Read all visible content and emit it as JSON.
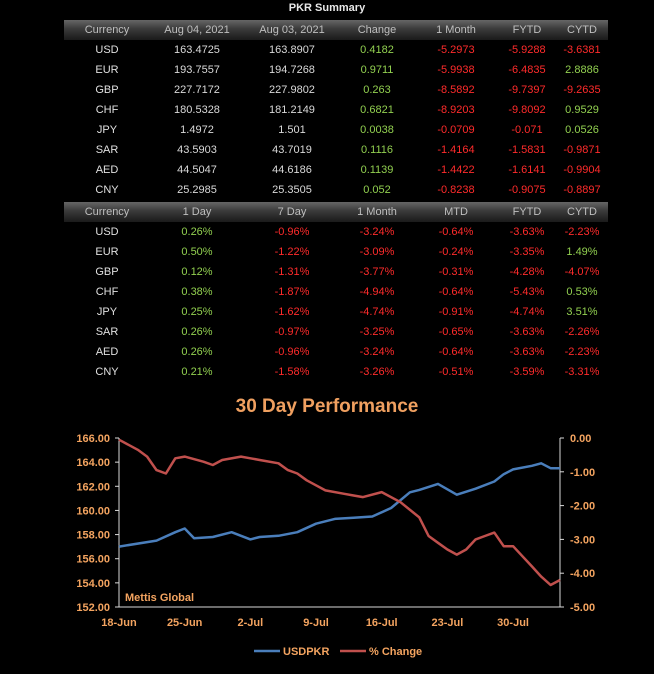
{
  "summary_title": "PKR Summary",
  "rates_table": {
    "headers": [
      "Currency",
      "Aug 04, 2021",
      "Aug 03, 2021",
      "Change",
      "1 Month",
      "FYTD",
      "CYTD"
    ],
    "rows": [
      [
        "USD",
        "163.4725",
        "163.8907",
        "0.4182",
        "-5.2973",
        "-5.9288",
        "-3.6381"
      ],
      [
        "EUR",
        "193.7557",
        "194.7268",
        "0.9711",
        "-5.9938",
        "-6.4835",
        "2.8886"
      ],
      [
        "GBP",
        "227.7172",
        "227.9802",
        "0.263",
        "-8.5892",
        "-9.7397",
        "-9.2635"
      ],
      [
        "CHF",
        "180.5328",
        "181.2149",
        "0.6821",
        "-8.9203",
        "-9.8092",
        "0.9529"
      ],
      [
        "JPY",
        "1.4972",
        "1.501",
        "0.0038",
        "-0.0709",
        "-0.071",
        "0.0526"
      ],
      [
        "SAR",
        "43.5903",
        "43.7019",
        "0.1116",
        "-1.4164",
        "-1.5831",
        "-0.9871"
      ],
      [
        "AED",
        "44.5047",
        "44.6186",
        "0.1139",
        "-1.4422",
        "-1.6141",
        "-0.9904"
      ],
      [
        "CNY",
        "25.2985",
        "25.3505",
        "0.052",
        "-0.8238",
        "-0.9075",
        "-0.8897"
      ]
    ]
  },
  "pct_table": {
    "headers": [
      "Currency",
      "1 Day",
      "7 Day",
      "1 Month",
      "MTD",
      "FYTD",
      "CYTD"
    ],
    "rows": [
      [
        "USD",
        "0.26%",
        "-0.96%",
        "-3.24%",
        "-0.64%",
        "-3.63%",
        "-2.23%"
      ],
      [
        "EUR",
        "0.50%",
        "-1.22%",
        "-3.09%",
        "-0.24%",
        "-3.35%",
        "1.49%"
      ],
      [
        "GBP",
        "0.12%",
        "-1.31%",
        "-3.77%",
        "-0.31%",
        "-4.28%",
        "-4.07%"
      ],
      [
        "CHF",
        "0.38%",
        "-1.87%",
        "-4.94%",
        "-0.64%",
        "-5.43%",
        "0.53%"
      ],
      [
        "JPY",
        "0.25%",
        "-1.62%",
        "-4.74%",
        "-0.91%",
        "-4.74%",
        "3.51%"
      ],
      [
        "SAR",
        "0.26%",
        "-0.97%",
        "-3.25%",
        "-0.65%",
        "-3.63%",
        "-2.26%"
      ],
      [
        "AED",
        "0.26%",
        "-0.96%",
        "-3.24%",
        "-0.64%",
        "-3.63%",
        "-2.23%"
      ],
      [
        "CNY",
        "0.21%",
        "-1.58%",
        "-3.26%",
        "-0.51%",
        "-3.59%",
        "-3.31%"
      ]
    ]
  },
  "colors": {
    "positive": "#92d050",
    "negative": "#ff2b2b",
    "usd_line": "#4a7ebb",
    "pct_line": "#c0504d",
    "axis_labels": "#f4a460"
  },
  "chart_data": {
    "type": "line",
    "title": "30 Day Performance",
    "watermark": "Mettis Global",
    "x_tick_labels": [
      "18-Jun",
      "25-Jun",
      "2-Jul",
      "9-Jul",
      "16-Jul",
      "23-Jul",
      "30-Jul"
    ],
    "x_range": [
      0,
      47
    ],
    "y_left": {
      "min": 152,
      "max": 166,
      "ticks": [
        "152.00",
        "154.00",
        "156.00",
        "158.00",
        "160.00",
        "162.00",
        "164.00",
        "166.00"
      ]
    },
    "y_right": {
      "min": -5,
      "max": 0,
      "ticks": [
        "0.00",
        "-1.00",
        "-2.00",
        "-3.00",
        "-4.00",
        "-5.00"
      ]
    },
    "legend_position": "bottom",
    "series": [
      {
        "name": "USDPKR",
        "axis": "left",
        "x": [
          0,
          4,
          6,
          7,
          8,
          10,
          12,
          14,
          15,
          17,
          19,
          21,
          23,
          25,
          27,
          29,
          31,
          32,
          34,
          36,
          38,
          40,
          41,
          42,
          44,
          45,
          46,
          47
        ],
        "y": [
          157.0,
          157.5,
          158.2,
          158.5,
          157.7,
          157.8,
          158.2,
          157.6,
          157.8,
          157.9,
          158.2,
          158.9,
          159.3,
          159.4,
          159.5,
          160.2,
          161.5,
          161.7,
          162.2,
          161.3,
          161.8,
          162.4,
          163.0,
          163.4,
          163.7,
          163.9,
          163.5,
          163.5
        ]
      },
      {
        "name": "% Change",
        "axis": "right",
        "x": [
          0,
          2,
          3,
          4,
          5,
          6,
          7,
          9,
          10,
          11,
          13,
          14,
          15,
          17,
          18,
          19,
          20,
          21,
          22,
          24,
          25,
          26,
          28,
          30,
          32,
          33,
          34,
          35,
          36,
          37,
          38,
          39,
          40,
          41,
          42,
          43,
          44,
          45,
          46,
          47
        ],
        "y": [
          -0.05,
          -0.35,
          -0.55,
          -0.95,
          -1.05,
          -0.6,
          -0.55,
          -0.7,
          -0.8,
          -0.65,
          -0.55,
          -0.6,
          -0.65,
          -0.75,
          -0.95,
          -1.05,
          -1.25,
          -1.4,
          -1.55,
          -1.65,
          -1.7,
          -1.75,
          -1.6,
          -1.9,
          -2.35,
          -2.9,
          -3.1,
          -3.3,
          -3.45,
          -3.3,
          -3.0,
          -2.9,
          -2.8,
          -3.2,
          -3.2,
          -3.5,
          -3.8,
          -4.1,
          -4.35,
          -4.2
        ]
      }
    ]
  }
}
